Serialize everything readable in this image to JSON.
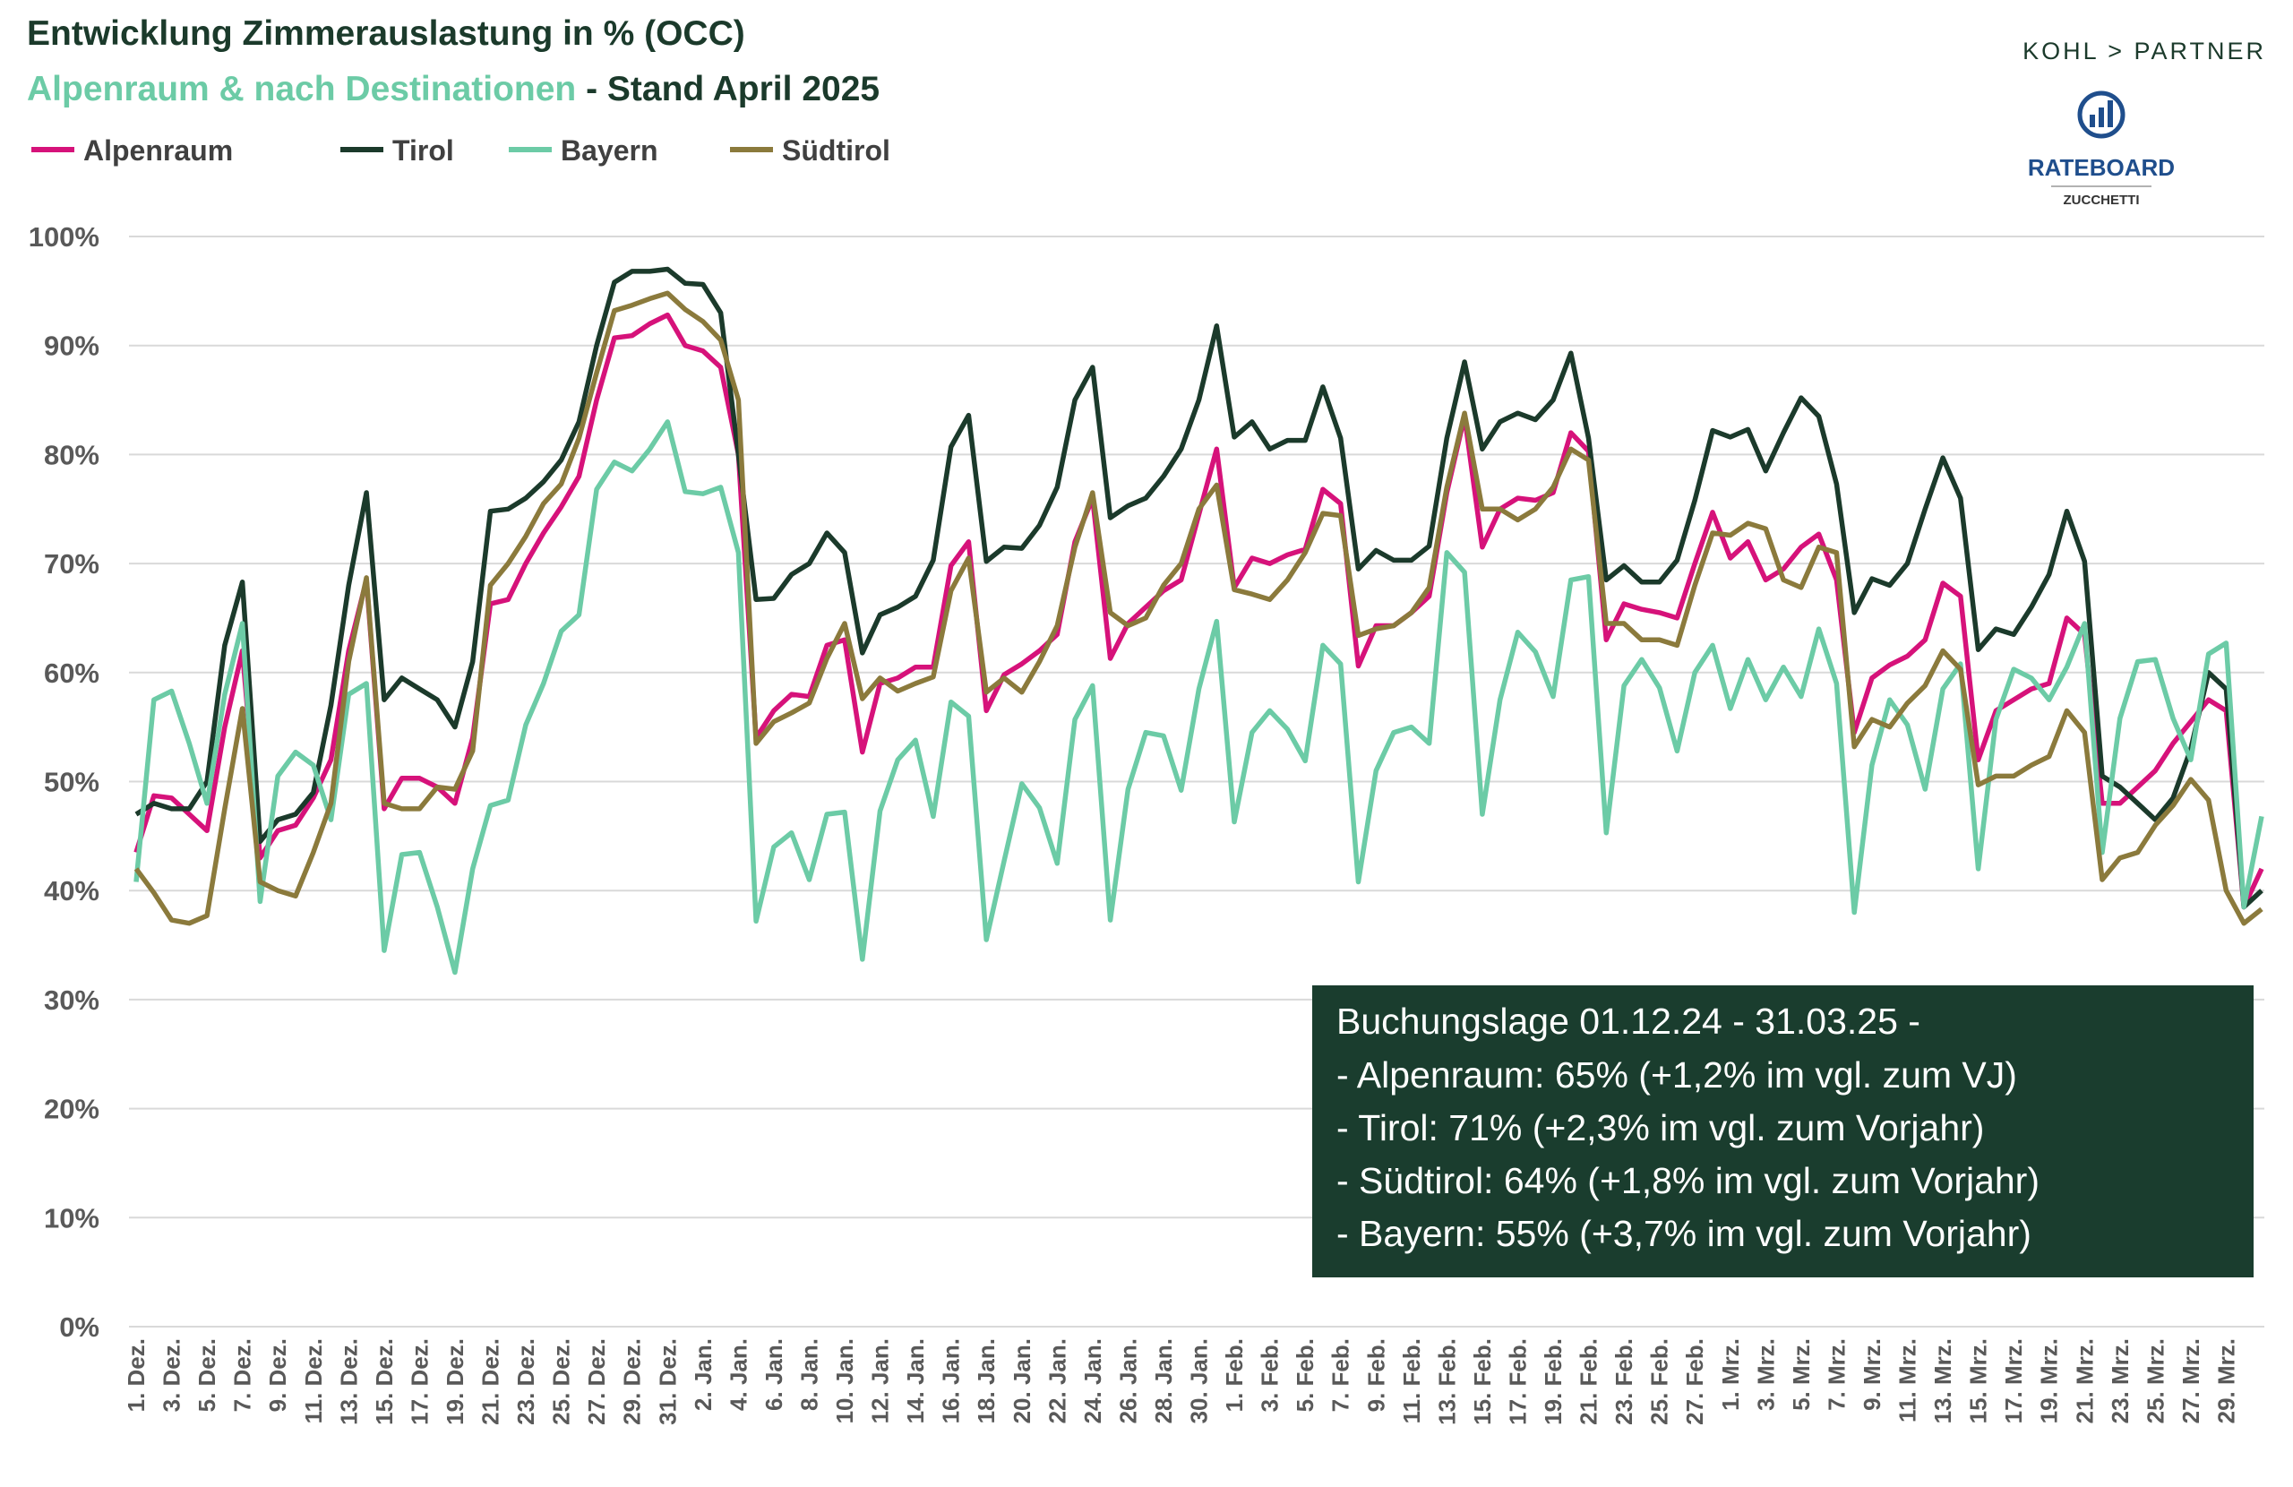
{
  "chart_data": {
    "type": "line",
    "title": "Entwicklung Zimmerauslastung in % (OCC)",
    "subtitle": [
      "Alpenraum & nach Destinationen",
      " - Stand April 2025"
    ],
    "logo": {
      "brand": "KOHL > PARTNER",
      "name": "RATEBOARD",
      "sub": "ZUCCHETTI"
    },
    "categories": [
      "1. Dez.",
      null,
      "3. Dez.",
      null,
      "5. Dez.",
      null,
      "7. Dez.",
      null,
      "9. Dez.",
      null,
      "11. Dez.",
      null,
      "13. Dez.",
      null,
      "15. Dez.",
      null,
      "17. Dez.",
      null,
      "19. Dez.",
      null,
      "21. Dez.",
      null,
      "23. Dez.",
      null,
      "25. Dez.",
      null,
      "27. Dez.",
      null,
      "29. Dez.",
      null,
      "31. Dez.",
      null,
      "2. Jan.",
      null,
      "4. Jan.",
      null,
      "6. Jan.",
      null,
      "8. Jan.",
      null,
      "10. Jan.",
      null,
      "12. Jan.",
      null,
      "14. Jan.",
      null,
      "16. Jan.",
      null,
      "18. Jan.",
      null,
      "20. Jan.",
      null,
      "22. Jan.",
      null,
      "24. Jan.",
      null,
      "26. Jan.",
      null,
      "28. Jan.",
      null,
      "30. Jan.",
      null,
      "1. Feb.",
      null,
      "3. Feb.",
      null,
      "5. Feb.",
      null,
      "7. Feb.",
      null,
      "9. Feb.",
      null,
      "11. Feb.",
      null,
      "13. Feb.",
      null,
      "15. Feb.",
      null,
      "17. Feb.",
      null,
      "19. Feb.",
      null,
      "21. Feb.",
      null,
      "23. Feb.",
      null,
      "25. Feb.",
      null,
      "27. Feb.",
      null,
      "1. Mrz.",
      null,
      "3. Mrz.",
      null,
      "5. Mrz.",
      null,
      "7. Mrz.",
      null,
      "9. Mrz.",
      null,
      "11. Mrz.",
      null,
      "13. Mrz.",
      null,
      "15. Mrz.",
      null,
      "17. Mrz.",
      null,
      "19. Mrz.",
      null,
      "21. Mrz.",
      null,
      "23. Mrz.",
      null,
      "25. Mrz.",
      null,
      "27. Mrz.",
      null,
      "29. Mrz.",
      null,
      null
    ],
    "series": [
      {
        "name": "Alpenraum",
        "color": "#d6127a",
        "values": [
          43.5,
          48.7,
          48.5,
          47,
          45.5,
          55,
          62,
          43,
          45.5,
          46,
          48.5,
          52,
          62,
          68.5,
          47.5,
          50.3,
          50.3,
          49.5,
          48,
          54,
          66.3,
          66.7,
          70,
          72.8,
          75.2,
          78,
          85,
          90.7,
          90.9,
          92,
          92.8,
          90,
          89.5,
          88,
          80,
          54,
          56.5,
          58,
          57.8,
          62.5,
          63,
          52.7,
          59,
          59.5,
          60.5,
          60.5,
          69.8,
          72,
          56.5,
          59.8,
          60.8,
          62,
          63.5,
          72,
          76,
          61.3,
          64.5,
          66,
          67.5,
          68.5,
          74.5,
          80.5,
          67.8,
          70.5,
          70,
          70.8,
          71.3,
          76.8,
          75.5,
          60.6,
          64.3,
          64.3,
          65.5,
          67,
          76.5,
          83.5,
          71.5,
          75,
          76,
          75.8,
          76.5,
          82,
          80.3,
          63,
          66.3,
          65.8,
          65.5,
          65,
          70,
          74.7,
          70.5,
          72,
          68.5,
          69.5,
          71.5,
          72.7,
          68.5,
          54.5,
          59.5,
          60.7,
          61.5,
          63,
          68.2,
          67,
          52,
          56.5,
          57.5,
          58.5,
          59,
          65,
          63.5,
          48,
          48,
          49.5,
          51,
          53.5,
          55.5,
          57.5,
          56.5,
          38.5,
          42
        ]
      },
      {
        "name": "Tirol",
        "color": "#1b3a2b",
        "values": [
          47,
          48,
          47.5,
          47.5,
          50,
          62.5,
          68.3,
          44.5,
          46.5,
          47,
          49,
          57,
          68,
          76.5,
          57.5,
          59.5,
          58.5,
          57.5,
          55,
          61,
          74.8,
          75,
          76,
          77.5,
          79.5,
          83,
          90,
          95.8,
          96.8,
          96.8,
          97,
          95.7,
          95.6,
          93,
          80,
          66.7,
          66.8,
          69,
          70,
          72.8,
          71,
          61.8,
          65.3,
          66,
          67,
          70.3,
          80.7,
          83.6,
          70.2,
          71.5,
          71.4,
          73.5,
          77,
          85,
          88,
          74.2,
          75.3,
          76,
          78,
          80.5,
          85,
          91.8,
          81.6,
          83,
          80.5,
          81.3,
          81.3,
          86.2,
          81.5,
          69.5,
          71.2,
          70.3,
          70.3,
          71.6,
          81.5,
          88.5,
          80.5,
          83,
          83.8,
          83.2,
          85,
          89.3,
          81.5,
          68.5,
          69.8,
          68.3,
          68.3,
          70.3,
          75.8,
          82.2,
          81.6,
          82.3,
          78.5,
          82,
          85.2,
          83.5,
          77.3,
          65.5,
          68.6,
          68,
          70,
          75,
          79.7,
          76,
          62.1,
          64,
          63.5,
          66,
          69,
          74.8,
          70.2,
          50.5,
          49.5,
          48,
          46.5,
          48.5,
          53,
          60,
          58.5,
          38.5,
          40
        ]
      },
      {
        "name": "Bayern",
        "color": "#6ccba6",
        "values": [
          40.8,
          57.5,
          58.3,
          53.5,
          48,
          58,
          64.5,
          39,
          50.5,
          52.7,
          51.5,
          46.5,
          58,
          59,
          34.5,
          43.3,
          43.5,
          38.5,
          32.5,
          42,
          47.8,
          48.3,
          55.2,
          59,
          63.8,
          65.3,
          76.8,
          79.3,
          78.5,
          80.5,
          83,
          76.6,
          76.4,
          77,
          71,
          37.2,
          44,
          45.3,
          41,
          47,
          47.2,
          33.7,
          47.3,
          52,
          53.8,
          46.8,
          57.3,
          56,
          35.5,
          42.7,
          49.8,
          47.6,
          42.5,
          55.7,
          58.8,
          37.3,
          49.3,
          54.5,
          54.2,
          49.2,
          58.5,
          64.7,
          46.3,
          54.5,
          56.5,
          54.8,
          51.9,
          62.5,
          60.8,
          40.8,
          51,
          54.5,
          55,
          53.5,
          71,
          69.2,
          47,
          57.5,
          63.7,
          61.9,
          57.8,
          68.5,
          68.8,
          45.3,
          58.8,
          61.2,
          58.6,
          52.8,
          60,
          62.5,
          56.7,
          61.2,
          57.5,
          60.5,
          57.8,
          64,
          59,
          38,
          51.5,
          57.5,
          55.2,
          49.3,
          58.5,
          60.8,
          42,
          55.7,
          60.3,
          59.5,
          57.5,
          60.5,
          64.5,
          43.5,
          55.8,
          61,
          61.2,
          55.8,
          52,
          61.7,
          62.7,
          38.5,
          46.8
        ]
      },
      {
        "name": "Südtirol",
        "color": "#8b7a3c",
        "values": [
          42,
          39.8,
          37.3,
          37,
          37.7,
          47.5,
          56.7,
          40.8,
          40,
          39.5,
          43.5,
          48,
          61,
          68.7,
          48,
          47.5,
          47.5,
          49.5,
          49.3,
          52.8,
          68,
          70,
          72.5,
          75.5,
          77.3,
          81.5,
          87.5,
          93.2,
          93.7,
          94.3,
          94.8,
          93.3,
          92.2,
          90.5,
          85,
          53.5,
          55.5,
          56.3,
          57.2,
          61.3,
          64.5,
          57.6,
          59.5,
          58.3,
          59,
          59.6,
          67.5,
          70.5,
          58.2,
          59.5,
          58.2,
          61,
          64.3,
          71.5,
          76.5,
          65.5,
          64.3,
          65,
          68,
          70,
          75,
          77.2,
          67.6,
          67.2,
          66.7,
          68.5,
          71,
          74.6,
          74.4,
          63.4,
          64,
          64.3,
          65.5,
          67.8,
          77,
          83.8,
          75,
          75,
          74,
          75,
          77,
          80.5,
          79.5,
          64.5,
          64.5,
          63,
          63,
          62.5,
          68,
          72.8,
          72.6,
          73.7,
          73.2,
          68.5,
          67.8,
          71.5,
          71,
          53.2,
          55.7,
          55,
          57.2,
          58.8,
          62,
          60.3,
          49.7,
          50.5,
          50.5,
          51.5,
          52.3,
          56.5,
          54.5,
          41,
          43,
          43.5,
          46,
          47.8,
          50.2,
          48.3,
          40,
          37,
          38.3
        ]
      }
    ],
    "ylim": [
      0,
      100
    ],
    "yticks": [
      {
        "value": 0,
        "label": "0%"
      },
      {
        "value": 10,
        "label": "10%"
      },
      {
        "value": 20,
        "label": "20%"
      },
      {
        "value": 30,
        "label": "30%"
      },
      {
        "value": 40,
        "label": "40%"
      },
      {
        "value": 50,
        "label": "50%"
      },
      {
        "value": 60,
        "label": "60%"
      },
      {
        "value": 70,
        "label": "70%"
      },
      {
        "value": 80,
        "label": "80%"
      },
      {
        "value": 90,
        "label": "90%"
      },
      {
        "value": 100,
        "label": "100%"
      }
    ],
    "grid": true,
    "legend": "top-left",
    "annotation": [
      "Buchungslage 01.12.24 - 31.03.25 -",
      "- Alpenraum:  65% (+1,2% im vgl. zum VJ)",
      "- Tirol:  71% (+2,3% im vgl. zum Vorjahr)",
      "- Südtirol:  64% (+1,8% im vgl. zum Vorjahr)",
      "- Bayern:  55% (+3,7% im vgl. zum Vorjahr)"
    ]
  }
}
